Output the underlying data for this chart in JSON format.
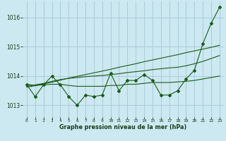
{
  "background_color": "#cce8f0",
  "grid_color": "#aaccda",
  "line_color": "#1a5c1a",
  "label_color": "#1a3a1a",
  "x_labels": [
    "0",
    "1",
    "2",
    "3",
    "4",
    "5",
    "6",
    "7",
    "8",
    "9",
    "10",
    "11",
    "12",
    "13",
    "14",
    "15",
    "16",
    "17",
    "18",
    "19",
    "20",
    "21",
    "22",
    "23"
  ],
  "xlabel": "Graphe pression niveau de la mer (hPa)",
  "yticks": [
    1013,
    1014,
    1015,
    1016
  ],
  "ylim": [
    1012.6,
    1016.55
  ],
  "xlim": [
    -0.5,
    23.5
  ],
  "series_main": [
    1013.7,
    1013.3,
    1013.7,
    1014.0,
    1013.7,
    1013.3,
    1013.0,
    1013.35,
    1013.3,
    1013.35,
    1014.1,
    1013.5,
    1013.85,
    1013.85,
    1014.05,
    1013.85,
    1013.35,
    1013.35,
    1013.5,
    1013.9,
    1014.2,
    1015.1,
    1015.8,
    1016.35
  ],
  "series_smooth": [
    1013.72,
    1013.68,
    1013.7,
    1013.72,
    1013.72,
    1013.68,
    1013.65,
    1013.65,
    1013.65,
    1013.65,
    1013.68,
    1013.68,
    1013.72,
    1013.72,
    1013.75,
    1013.78,
    1013.78,
    1013.78,
    1013.8,
    1013.82,
    1013.85,
    1013.9,
    1013.95,
    1014.0
  ],
  "series_trend": [
    1013.65,
    1013.7,
    1013.75,
    1013.82,
    1013.88,
    1013.92,
    1013.95,
    1013.98,
    1014.0,
    1014.02,
    1014.05,
    1014.08,
    1014.12,
    1014.15,
    1014.18,
    1014.22,
    1014.25,
    1014.28,
    1014.3,
    1014.35,
    1014.42,
    1014.5,
    1014.6,
    1014.7
  ],
  "series_linear": [
    1013.62,
    1013.67,
    1013.73,
    1013.79,
    1013.86,
    1013.93,
    1013.99,
    1014.05,
    1014.11,
    1014.17,
    1014.23,
    1014.3,
    1014.36,
    1014.42,
    1014.49,
    1014.55,
    1014.61,
    1014.67,
    1014.73,
    1014.8,
    1014.86,
    1014.92,
    1014.98,
    1015.05
  ]
}
